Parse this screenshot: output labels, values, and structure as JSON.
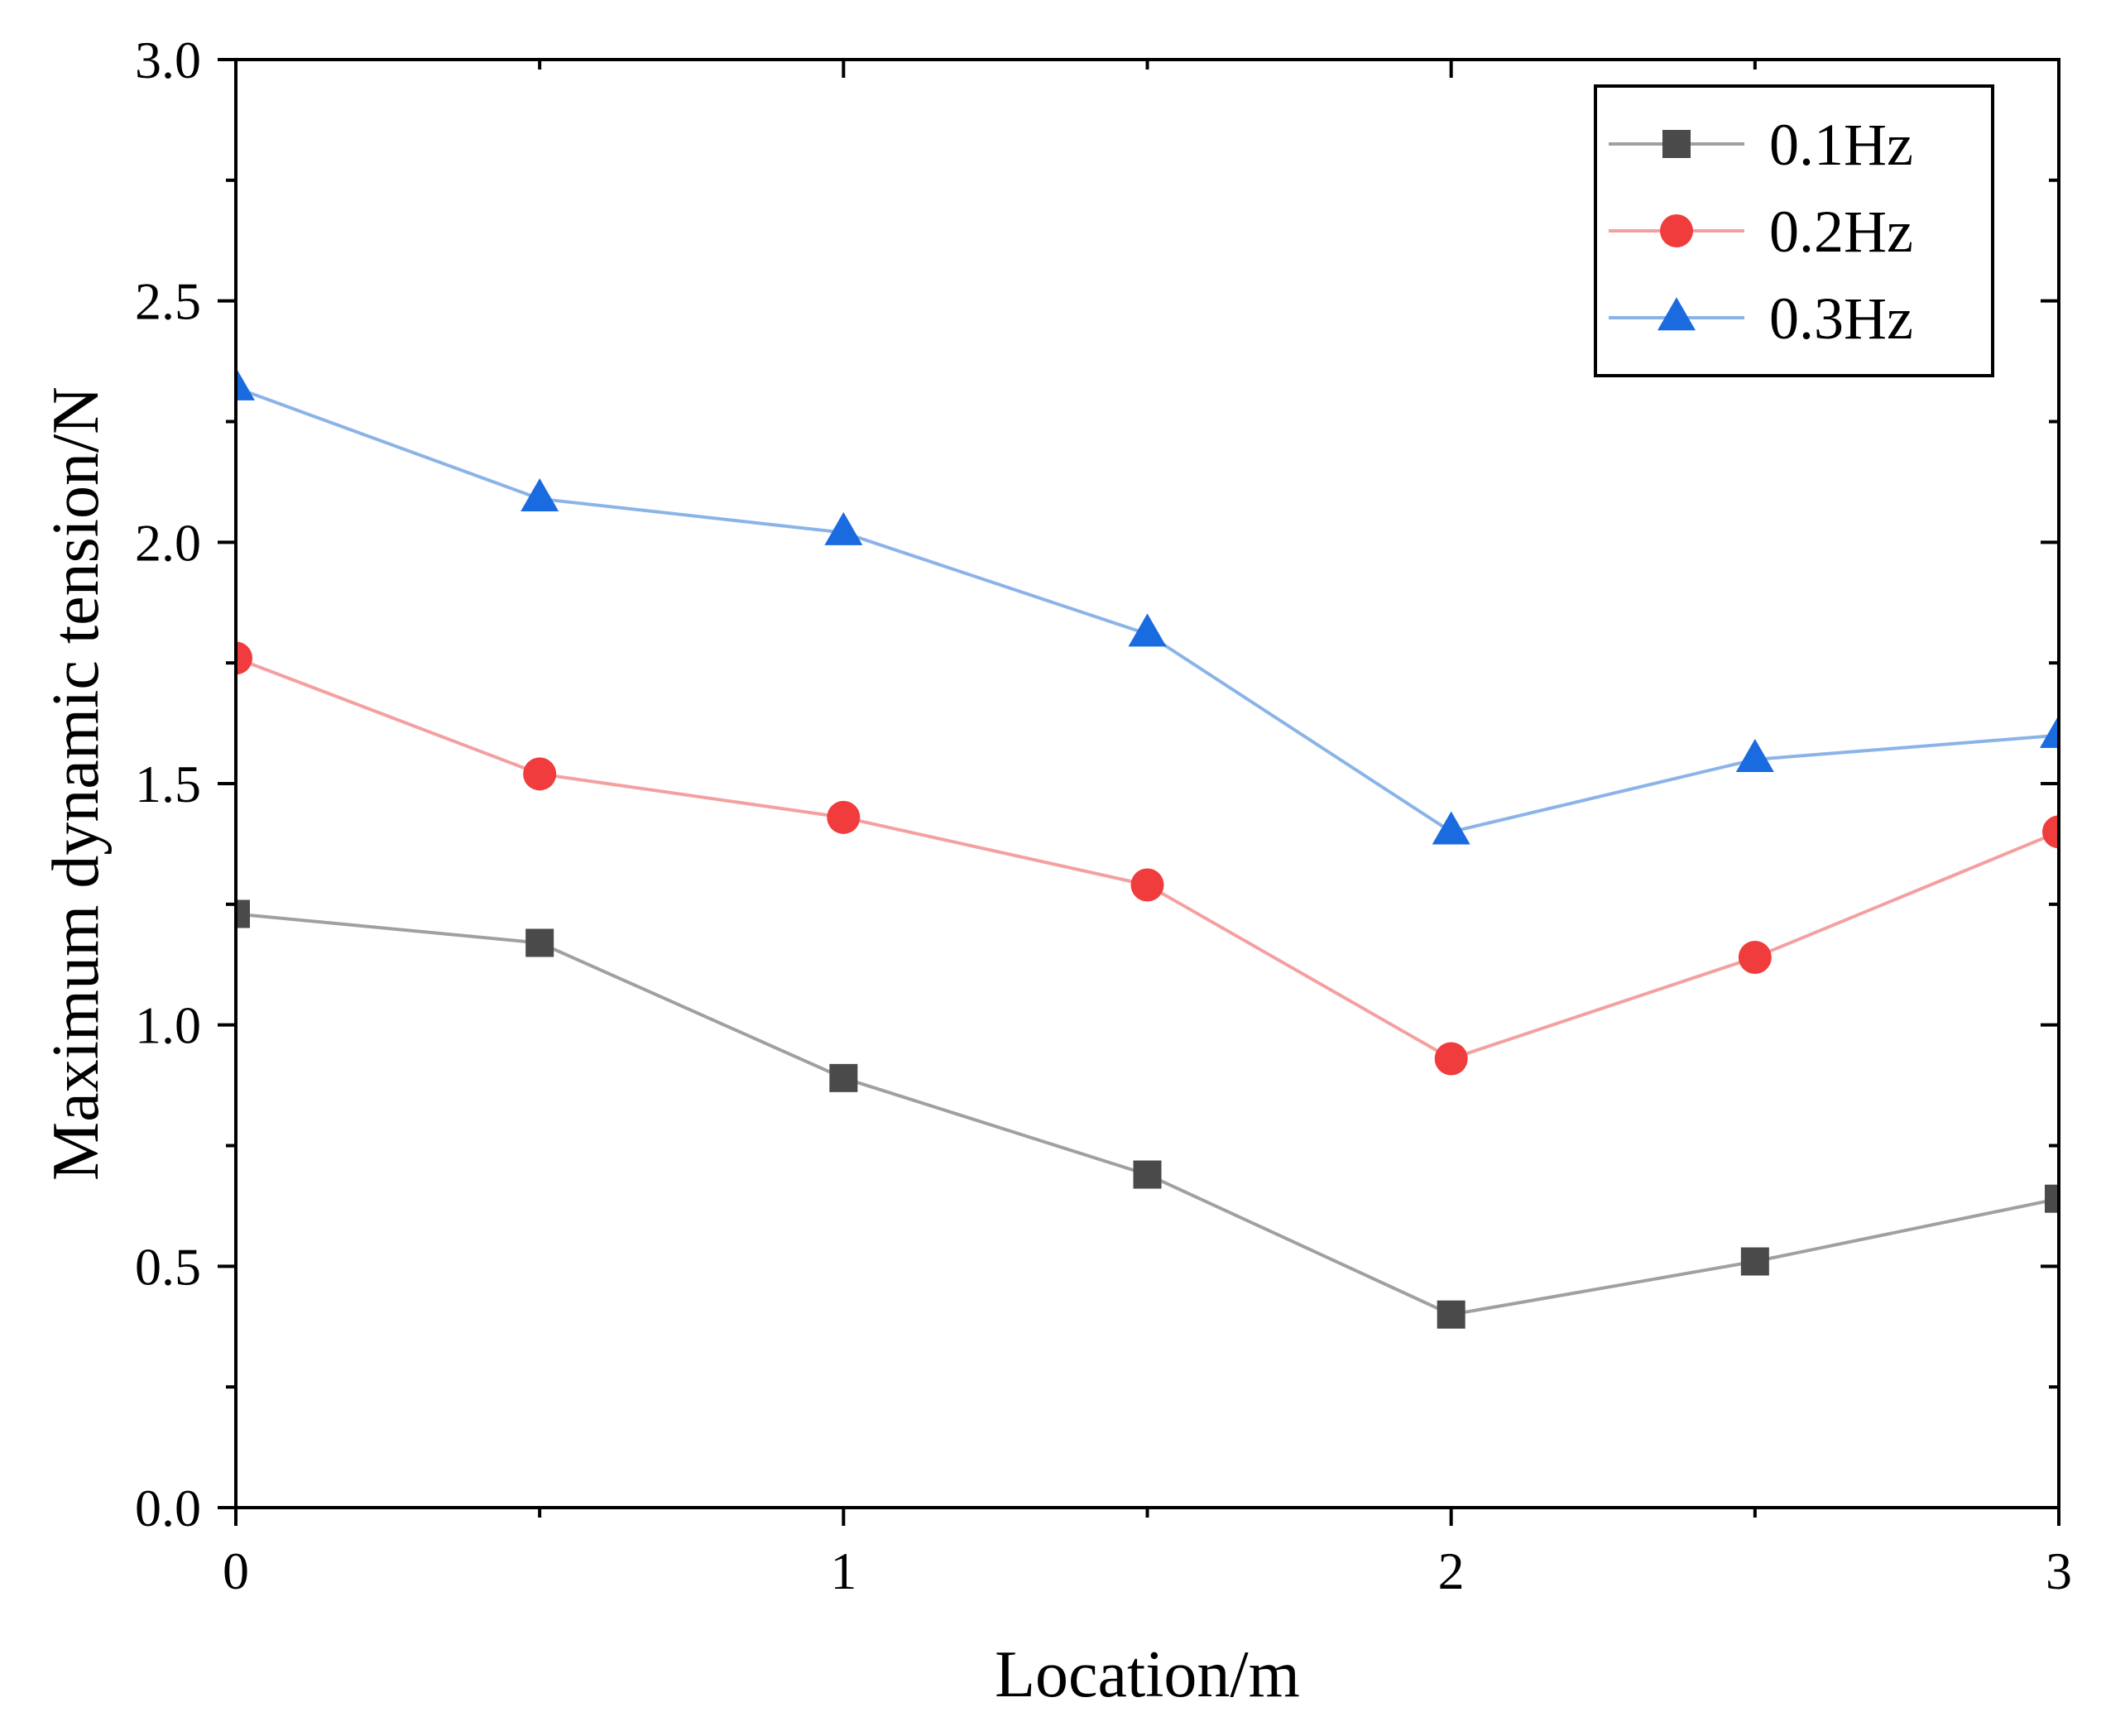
{
  "chart_data": {
    "type": "line",
    "title": "",
    "xlabel": "Location/m",
    "ylabel": "Maximum dynamic tension/N",
    "x": [
      0,
      0.5,
      1,
      1.5,
      2,
      2.5,
      3
    ],
    "xlim": [
      0,
      3
    ],
    "ylim": [
      0,
      3
    ],
    "xticks": [
      0,
      1,
      2,
      3
    ],
    "xtick_labels": [
      "0",
      "1",
      "2",
      "3"
    ],
    "yticks": [
      0,
      0.5,
      1,
      1.5,
      2,
      2.5,
      3
    ],
    "ytick_labels": [
      "0.0",
      "0.5",
      "1.0",
      "1.5",
      "2.0",
      "2.5",
      "3.0"
    ],
    "grid": false,
    "legend_position": "top-right",
    "series": [
      {
        "name": "0.1Hz",
        "marker": "square",
        "line_color": "#a0a0a0",
        "marker_color": "#4a4a4a",
        "values": [
          1.23,
          1.17,
          0.89,
          0.69,
          0.4,
          0.51,
          0.64
        ]
      },
      {
        "name": "0.2Hz",
        "marker": "circle",
        "line_color": "#f4a0a0",
        "marker_color": "#f03c3c",
        "values": [
          1.76,
          1.52,
          1.43,
          1.29,
          0.93,
          1.14,
          1.4
        ]
      },
      {
        "name": "0.3Hz",
        "marker": "triangle",
        "line_color": "#8ab4e8",
        "marker_color": "#1a6be0",
        "values": [
          2.32,
          2.09,
          2.02,
          1.81,
          1.4,
          1.55,
          1.6
        ]
      }
    ]
  }
}
